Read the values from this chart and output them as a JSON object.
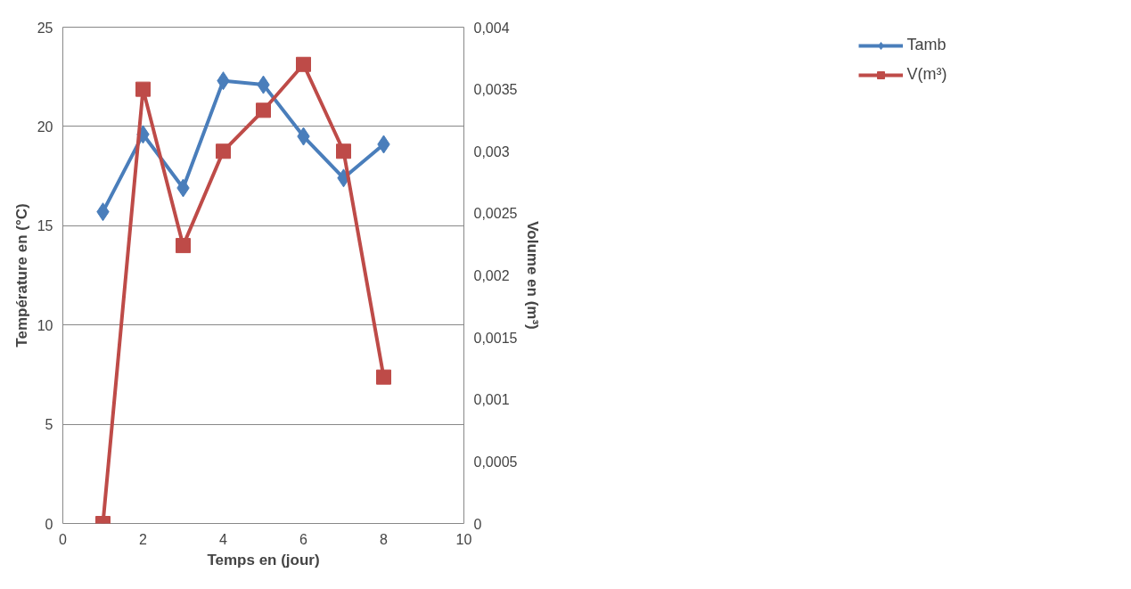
{
  "chart_data": {
    "type": "line",
    "xlabel": "Temps en (jour)",
    "ylabel": "Température en (°C)",
    "y2label": "Volume en (m³)",
    "x": [
      1,
      2,
      3,
      4,
      5,
      6,
      7,
      8
    ],
    "series": [
      {
        "name": "Tamb",
        "color": "#4a7ebb",
        "marker": "diamond",
        "values": [
          15.7,
          19.6,
          16.9,
          22.3,
          22.1,
          19.5,
          17.4,
          19.1
        ]
      },
      {
        "name": "V(m³)",
        "color": "#be4b48",
        "marker": "square",
        "axis": "y2",
        "values": [
          0,
          0.0035,
          0.00224,
          0.003,
          0.00333,
          0.0037,
          0.003,
          0.00118
        ]
      }
    ],
    "xlim": [
      0,
      10
    ],
    "xticks": [
      0,
      2,
      4,
      6,
      8,
      10
    ],
    "ylim": [
      0,
      25
    ],
    "yticks": [
      0,
      5,
      10,
      15,
      20,
      25
    ],
    "y2lim": [
      0,
      0.004
    ],
    "y2ticks": [
      0,
      {
        "value": 0.0005,
        "label": "0,0005"
      },
      {
        "value": 0.001,
        "label": "0,001"
      },
      {
        "value": 0.0015,
        "label": "0,0015"
      },
      {
        "value": 0.002,
        "label": "0,002"
      },
      {
        "value": 0.0025,
        "label": "0,0025"
      },
      {
        "value": 0.003,
        "label": "0,003"
      },
      {
        "value": 0.0035,
        "label": "0,0035"
      },
      {
        "value": 0.004,
        "label": "0,004"
      }
    ],
    "grid": "y",
    "legend": "right",
    "line_style": "solid"
  }
}
